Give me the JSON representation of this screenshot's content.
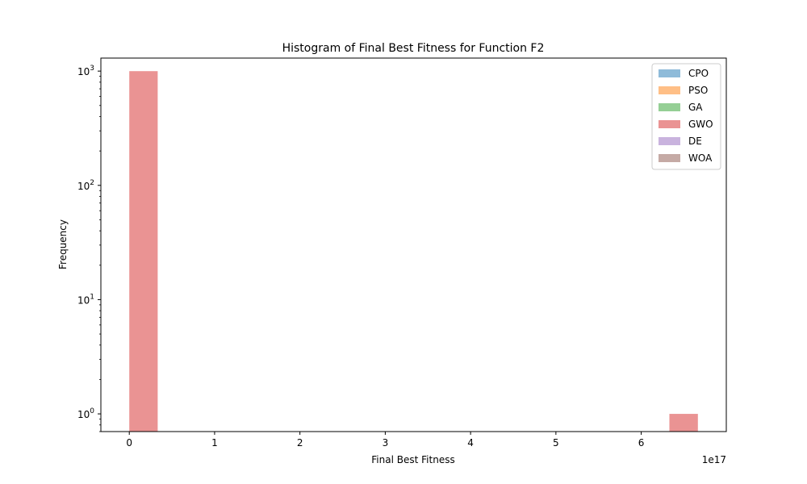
{
  "chart_data": {
    "type": "bar",
    "title": "Histogram of Final Best Fitness for Function F2",
    "xlabel": "Final Best Fitness",
    "ylabel": "Frequency",
    "x_offset_label": "1e17",
    "yscale": "log",
    "xlim": [
      -0.333,
      6.997
    ],
    "ylim": [
      0.7,
      1300
    ],
    "x_ticks": [
      {
        "value": 0,
        "label": "0"
      },
      {
        "value": 1,
        "label": "1"
      },
      {
        "value": 2,
        "label": "2"
      },
      {
        "value": 3,
        "label": "3"
      },
      {
        "value": 4,
        "label": "4"
      },
      {
        "value": 5,
        "label": "5"
      },
      {
        "value": 6,
        "label": "6"
      }
    ],
    "y_ticks": [
      {
        "value": 1,
        "base": "10",
        "exp": "0"
      },
      {
        "value": 10,
        "base": "10",
        "exp": "1"
      },
      {
        "value": 100,
        "base": "10",
        "exp": "2"
      },
      {
        "value": 1000,
        "base": "10",
        "exp": "3"
      }
    ],
    "legend_position": "top-right",
    "grid": false,
    "series": [
      {
        "name": "CPO",
        "color": "#1f77b4",
        "bins": []
      },
      {
        "name": "PSO",
        "color": "#ff7f0e",
        "bins": []
      },
      {
        "name": "GA",
        "color": "#2ca02c",
        "bins": []
      },
      {
        "name": "GWO",
        "color": "#d62728",
        "bins": [
          {
            "x0": 0.0,
            "x1": 0.333,
            "count": 999
          },
          {
            "x0": 6.33,
            "x1": 6.664,
            "count": 1
          }
        ]
      },
      {
        "name": "DE",
        "color": "#9467bd",
        "bins": []
      },
      {
        "name": "WOA",
        "color": "#8c564b",
        "bins": []
      }
    ],
    "bar_alpha": 0.5
  }
}
